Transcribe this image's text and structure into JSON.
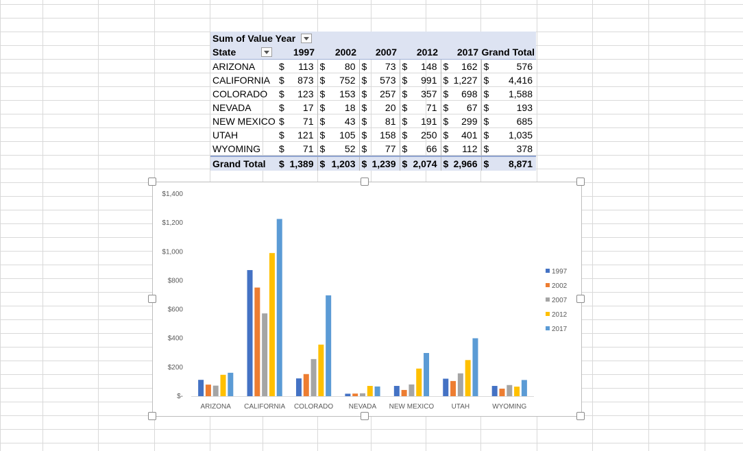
{
  "pivot": {
    "header": {
      "title": "Sum of Value",
      "col_field": "Year",
      "row_field": "State",
      "grand_total_label": "Grand Total"
    },
    "currency_symbol": "$",
    "years": [
      "1997",
      "2002",
      "2007",
      "2012",
      "2017"
    ],
    "rows": [
      {
        "state": "ARIZONA",
        "values": [
          "113",
          "80",
          "73",
          "148",
          "162"
        ],
        "total": "576"
      },
      {
        "state": "CALIFORNIA",
        "values": [
          "873",
          "752",
          "573",
          "991",
          "1,227"
        ],
        "total": "4,416"
      },
      {
        "state": "COLORADO",
        "values": [
          "123",
          "153",
          "257",
          "357",
          "698"
        ],
        "total": "1,588"
      },
      {
        "state": "NEVADA",
        "values": [
          "17",
          "18",
          "20",
          "71",
          "67"
        ],
        "total": "193"
      },
      {
        "state": "NEW MEXICO",
        "values": [
          "71",
          "43",
          "81",
          "191",
          "299"
        ],
        "total": "685"
      },
      {
        "state": "UTAH",
        "values": [
          "121",
          "105",
          "158",
          "250",
          "401"
        ],
        "total": "1,035"
      },
      {
        "state": "WYOMING",
        "values": [
          "71",
          "52",
          "77",
          "66",
          "112"
        ],
        "total": "378"
      }
    ],
    "grand_total": {
      "label": "Grand Total",
      "values": [
        "1,389",
        "1,203",
        "1,239",
        "2,074",
        "2,966"
      ],
      "total": "8,871"
    }
  },
  "chart_data": {
    "type": "bar",
    "categories": [
      "ARIZONA",
      "CALIFORNIA",
      "COLORADO",
      "NEVADA",
      "NEW MEXICO",
      "UTAH",
      "WYOMING"
    ],
    "series": [
      {
        "name": "1997",
        "color": "#4472c4",
        "values": [
          113,
          873,
          123,
          17,
          71,
          121,
          71
        ]
      },
      {
        "name": "2002",
        "color": "#ed7d31",
        "values": [
          80,
          752,
          153,
          18,
          43,
          105,
          52
        ]
      },
      {
        "name": "2007",
        "color": "#a5a5a5",
        "values": [
          73,
          573,
          257,
          20,
          81,
          158,
          77
        ]
      },
      {
        "name": "2012",
        "color": "#ffc000",
        "values": [
          148,
          991,
          357,
          71,
          191,
          250,
          66
        ]
      },
      {
        "name": "2017",
        "color": "#5b9bd5",
        "values": [
          162,
          1227,
          698,
          67,
          299,
          401,
          112
        ]
      }
    ],
    "y_tick_labels": [
      "$-",
      "$200",
      "$400",
      "$600",
      "$800",
      "$1,000",
      "$1,200",
      "$1,400"
    ],
    "ylim": [
      0,
      1400
    ],
    "legend_position": "right",
    "grid": false,
    "title": "",
    "xlabel": "",
    "ylabel": ""
  }
}
